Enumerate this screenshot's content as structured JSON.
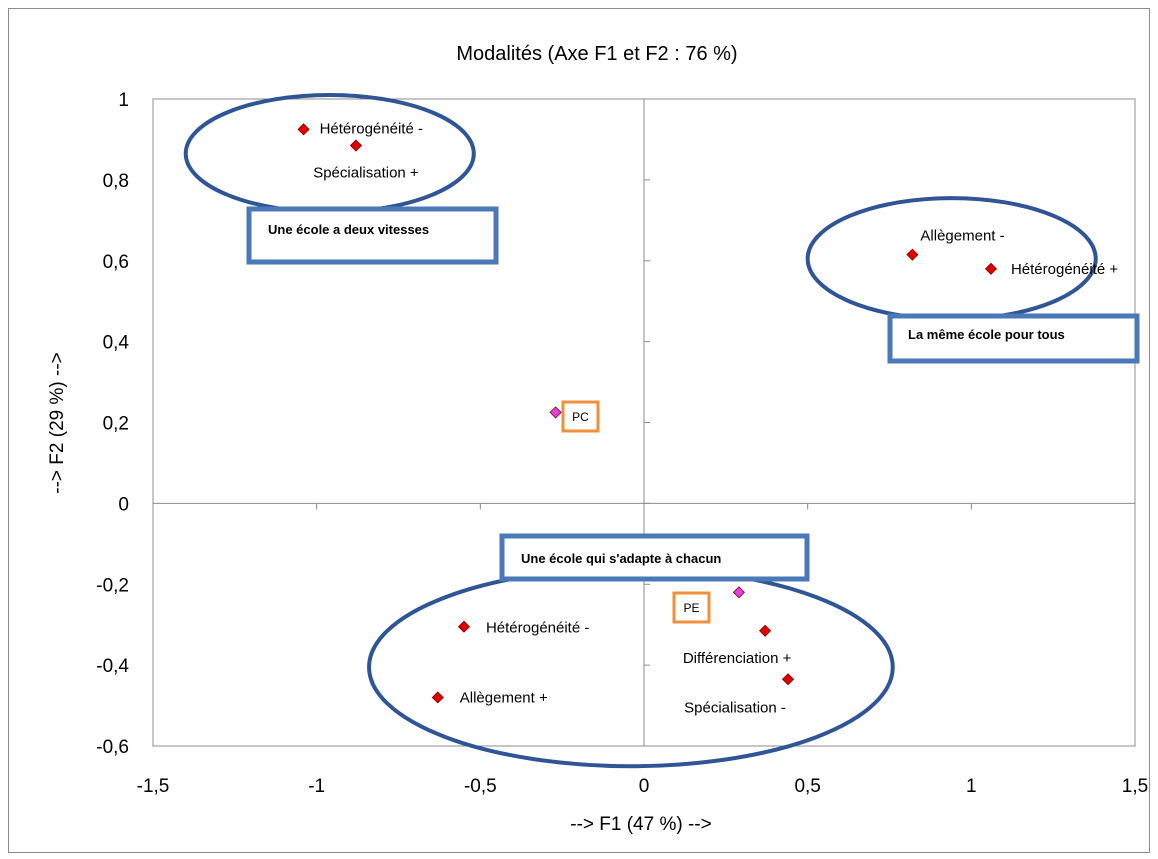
{
  "chart_data": {
    "type": "scatter",
    "title": "Modalités (Axe F1 et F2 : 76 %)",
    "xlabel": "--> F1 (47 %) -->",
    "ylabel": "--> F2 (29 %) -->",
    "xlim": [
      -1.5,
      1.5
    ],
    "ylim": [
      -0.6,
      1
    ],
    "x_ticks": [
      -1.5,
      -1,
      -0.5,
      0,
      0.5,
      1,
      1.5
    ],
    "x_tick_labels": [
      "-1,5",
      "-1",
      "-0,5",
      "0",
      "0,5",
      "1",
      "1,5"
    ],
    "y_ticks": [
      -0.6,
      -0.4,
      -0.2,
      0,
      0.2,
      0.4,
      0.6,
      0.8,
      1
    ],
    "y_tick_labels": [
      "-0,6",
      "-0,4",
      "-0,2",
      "0",
      "0,2",
      "0,4",
      "0,6",
      "0,8",
      "1"
    ],
    "grid": false,
    "colors": {
      "modalite": "#e00000",
      "marker_outline": "#8b0000",
      "supplementaire": "#e040e0",
      "ellipse": "#2f5597",
      "box": "#4a78b8",
      "tag": "#f0903a"
    },
    "points": [
      {
        "label": "Hétérogénéité -",
        "x": -1.04,
        "y": 0.925,
        "kind": "modalite"
      },
      {
        "label": "Spécialisation +",
        "x": -0.88,
        "y": 0.885,
        "kind": "modalite"
      },
      {
        "label": "Allègement -",
        "x": 0.82,
        "y": 0.615,
        "kind": "modalite"
      },
      {
        "label": "Hétérogénéité +",
        "x": 1.06,
        "y": 0.58,
        "kind": "modalite"
      },
      {
        "label": "",
        "x": -0.27,
        "y": 0.225,
        "kind": "supplementaire"
      },
      {
        "label": "",
        "x": 0.29,
        "y": -0.22,
        "kind": "supplementaire"
      },
      {
        "label": "Hétérogénéité -",
        "x": -0.55,
        "y": -0.305,
        "kind": "modalite"
      },
      {
        "label": "Différenciation +",
        "x": 0.37,
        "y": -0.315,
        "kind": "modalite"
      },
      {
        "label": "Allègement +",
        "x": -0.63,
        "y": -0.48,
        "kind": "modalite"
      },
      {
        "label": "Spécialisation -",
        "x": 0.44,
        "y": -0.435,
        "kind": "modalite"
      }
    ],
    "annotations": {
      "boxes": [
        "Une école a deux vitesses",
        "La même école pour tous",
        "Une école qui s'adapte à chacun"
      ],
      "tags": [
        "PC",
        "PE"
      ]
    }
  }
}
